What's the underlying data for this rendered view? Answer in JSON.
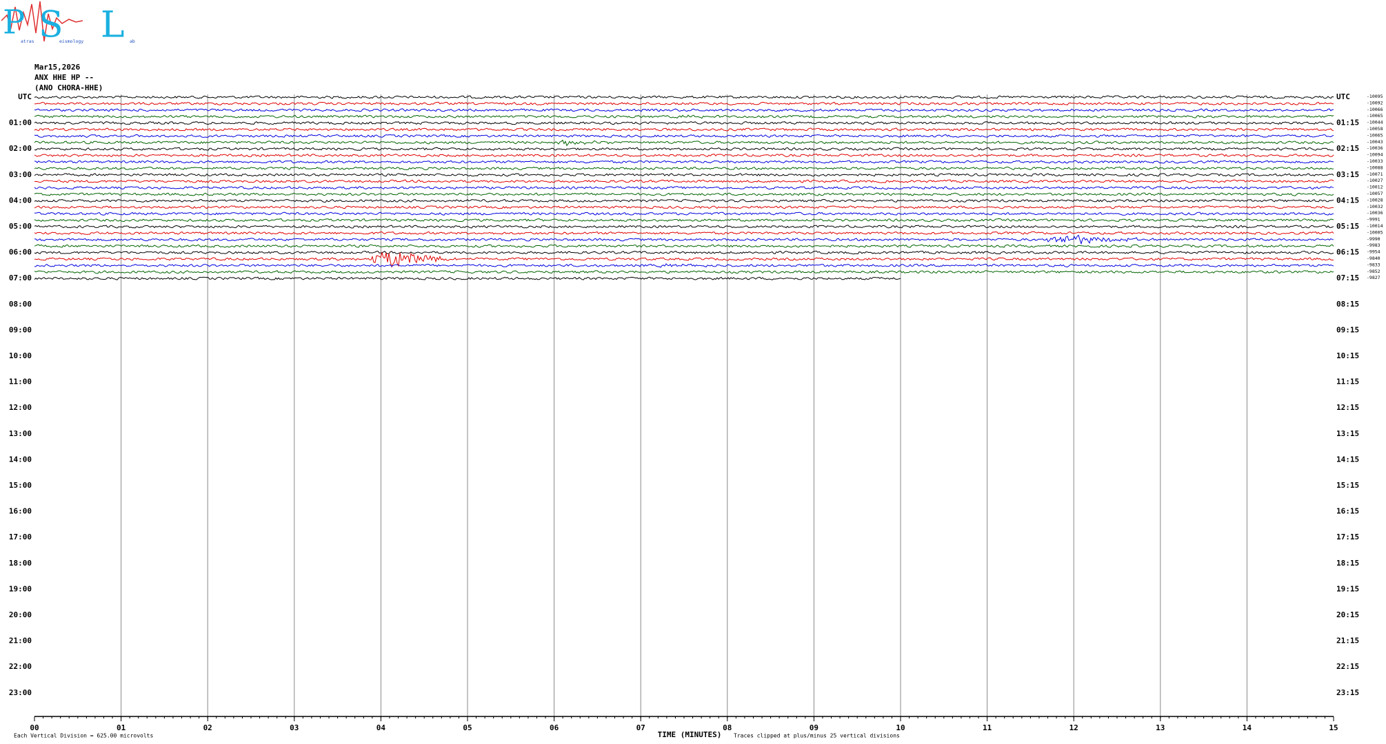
{
  "logo": {
    "letters": [
      "P",
      "S",
      "L"
    ],
    "small": [
      "atras",
      "eismology",
      "ab"
    ]
  },
  "header": {
    "date": "Mar15,2026",
    "station": "ANX HHE HP --",
    "site": "(ANO CHORA-HHE)"
  },
  "left_labels": [
    "UTC",
    "01:00",
    "02:00",
    "03:00",
    "04:00",
    "05:00",
    "06:00",
    "07:00",
    "08:00",
    "09:00",
    "10:00",
    "11:00",
    "12:00",
    "13:00",
    "14:00",
    "15:00",
    "16:00",
    "17:00",
    "18:00",
    "19:00",
    "20:00",
    "21:00",
    "22:00",
    "23:00"
  ],
  "right_labels": [
    "UTC",
    "01:15",
    "02:15",
    "03:15",
    "04:15",
    "05:15",
    "06:15",
    "07:15",
    "08:15",
    "09:15",
    "10:15",
    "11:15",
    "12:15",
    "13:15",
    "14:15",
    "15:15",
    "16:15",
    "17:15",
    "18:15",
    "19:15",
    "20:15",
    "21:15",
    "22:15",
    "23:15"
  ],
  "trace_offsets": [
    "-10095",
    "-10092",
    "-10066",
    "-10065",
    "-10044",
    "-10058",
    "-10065",
    "-10043",
    "-10036",
    "-10094",
    "-10033",
    "-10088",
    "-10071",
    "-10027",
    "-10012",
    "-10057",
    "-10028",
    "-10032",
    "-10036",
    "-9991",
    "-10014",
    "-10005",
    "-9990",
    "-9983",
    "-9954",
    "-9840",
    "-9833",
    "-9852",
    "-9827"
  ],
  "minute_labels": [
    "00",
    "01",
    "02",
    "03",
    "04",
    "05",
    "06",
    "07",
    "08",
    "09",
    "10",
    "11",
    "12",
    "13",
    "14",
    "15"
  ],
  "footer": {
    "axis_title": "TIME (MINUTES)",
    "division": "Each Vertical Division =  625.00 microvolts",
    "clip": "Traces clipped at plus/minus 25 vertical divisions"
  }
}
